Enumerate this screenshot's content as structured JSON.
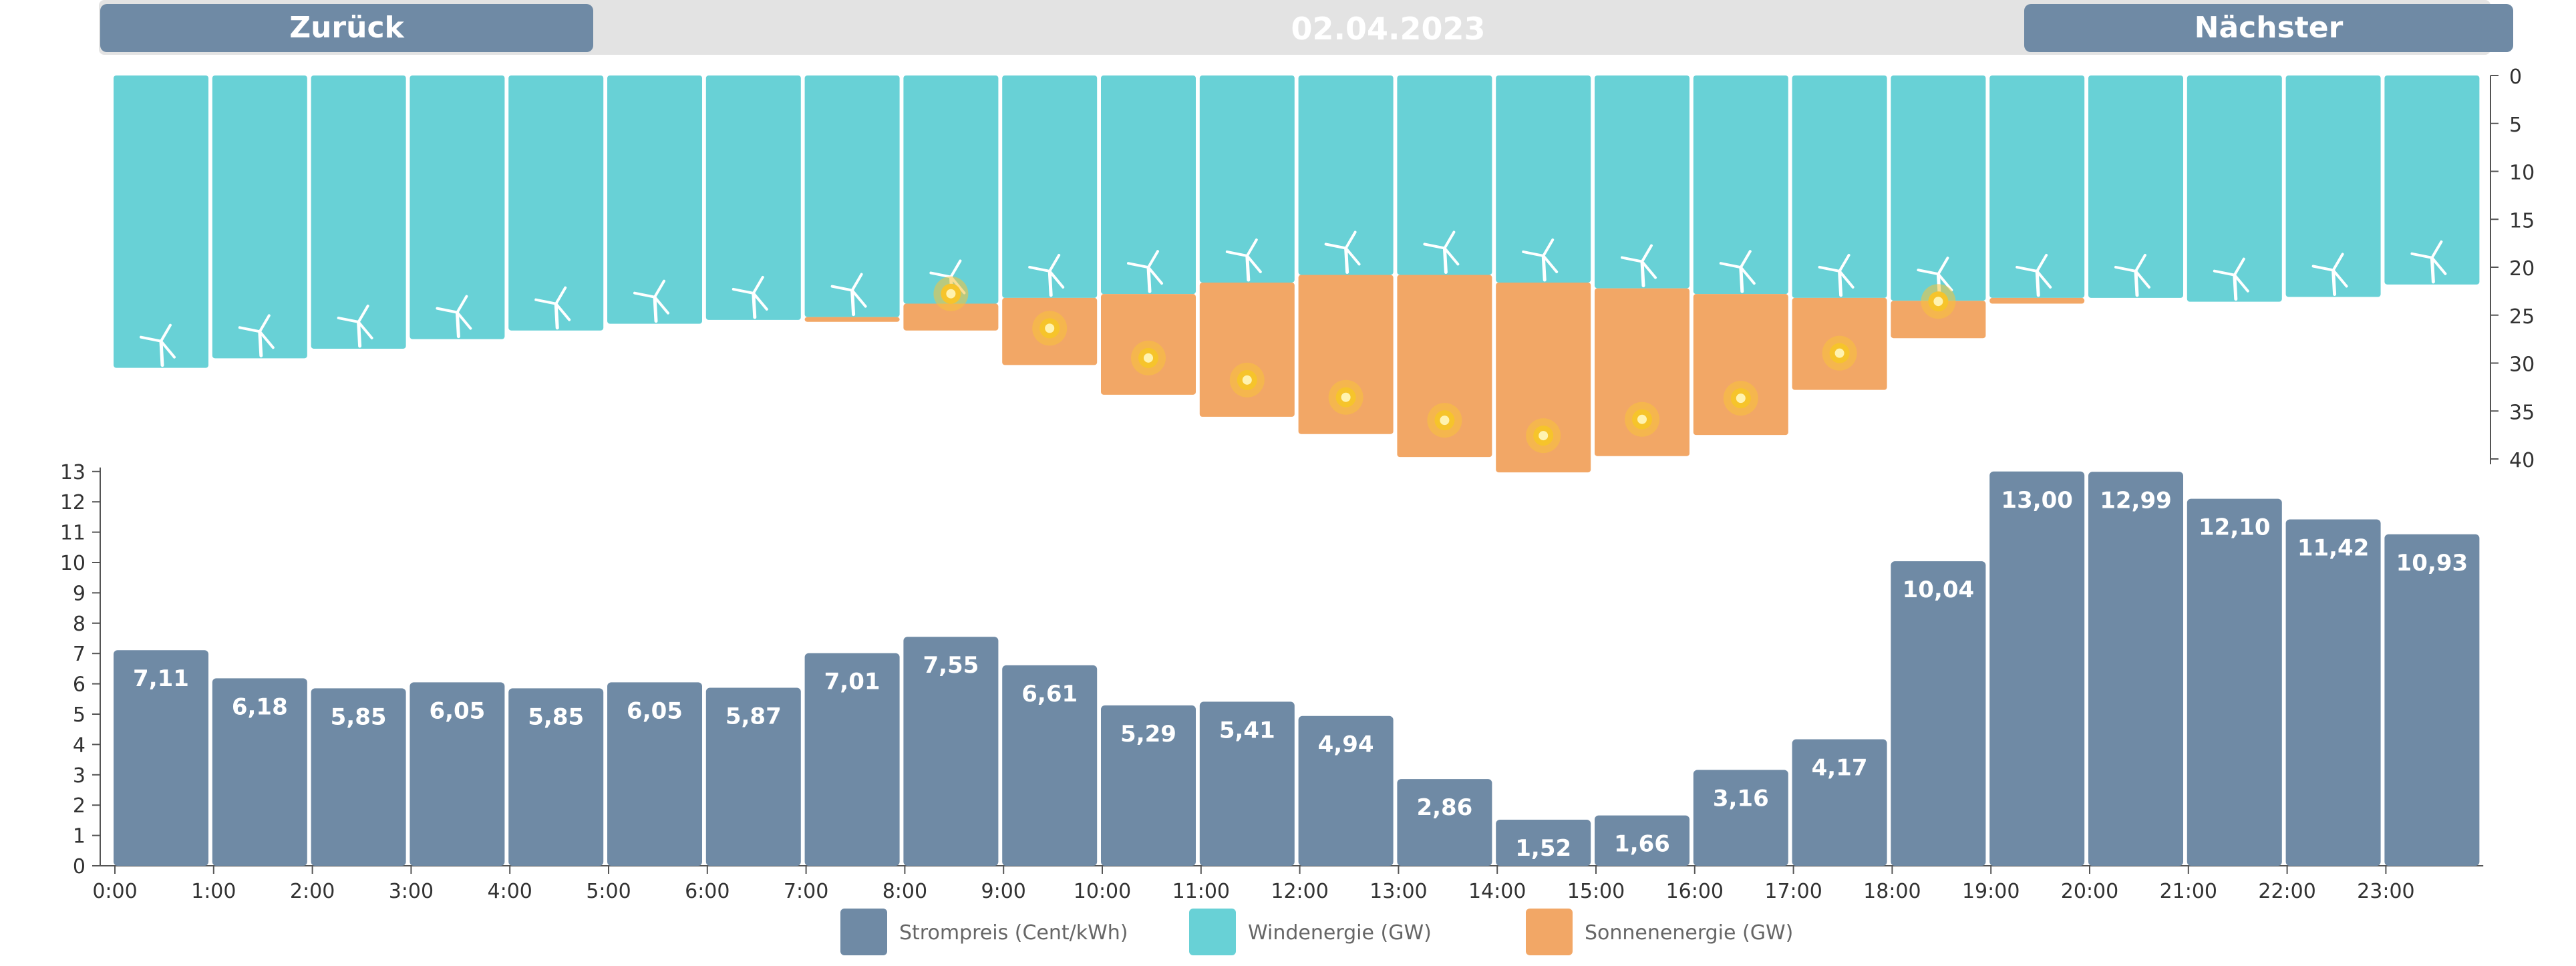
{
  "navigation": {
    "back_label": "Zurück",
    "date": "02.04.2023",
    "next_label": "Nächster"
  },
  "colors": {
    "price": "#6f8aa5",
    "wind": "#68d1d6",
    "solar": "#f2a766",
    "sun_icon": "#f6c42b",
    "nav_bg": "#e3e3e3"
  },
  "chart_data": [
    {
      "type": "bar",
      "chart_kind": "stacked-inverted",
      "categories": [
        "0:00",
        "1:00",
        "2:00",
        "3:00",
        "4:00",
        "5:00",
        "6:00",
        "7:00",
        "8:00",
        "9:00",
        "10:00",
        "11:00",
        "12:00",
        "13:00",
        "14:00",
        "15:00",
        "16:00",
        "17:00",
        "18:00",
        "19:00",
        "20:00",
        "21:00",
        "22:00",
        "23:00"
      ],
      "series": [
        {
          "name": "Windenergie (GW)",
          "icon": "wind-turbine-icon",
          "values": [
            30.5,
            29.5,
            28.5,
            27.5,
            26.6,
            25.9,
            25.5,
            25.2,
            23.8,
            23.2,
            22.8,
            21.6,
            20.8,
            20.8,
            21.6,
            22.2,
            22.8,
            23.2,
            23.5,
            23.2,
            23.2,
            23.6,
            23.1,
            21.8
          ]
        },
        {
          "name": "Sonnenenergie (GW)",
          "icon": "sun-icon",
          "values": [
            0,
            0,
            0,
            0,
            0,
            0,
            0,
            0.5,
            2.8,
            7.0,
            10.5,
            14.0,
            16.6,
            19.0,
            19.8,
            17.5,
            14.7,
            9.6,
            3.9,
            0.6,
            0,
            0,
            0,
            0
          ]
        }
      ],
      "yaxis_ticks": [
        "0",
        "5",
        "10",
        "15",
        "20",
        "25",
        "30",
        "35",
        "40"
      ],
      "ylim": [
        0,
        40
      ],
      "y_inverted": true
    },
    {
      "type": "bar",
      "categories": [
        "0:00",
        "1:00",
        "2:00",
        "3:00",
        "4:00",
        "5:00",
        "6:00",
        "7:00",
        "8:00",
        "9:00",
        "10:00",
        "11:00",
        "12:00",
        "13:00",
        "14:00",
        "15:00",
        "16:00",
        "17:00",
        "18:00",
        "19:00",
        "20:00",
        "21:00",
        "22:00",
        "23:00"
      ],
      "series": [
        {
          "name": "Strompreis (Cent/kWh)",
          "values": [
            7.11,
            6.18,
            5.85,
            6.05,
            5.85,
            6.05,
            5.87,
            7.01,
            7.55,
            6.61,
            5.29,
            5.41,
            4.94,
            2.86,
            1.52,
            1.66,
            3.16,
            4.17,
            10.04,
            13.0,
            12.99,
            12.1,
            11.42,
            10.93
          ]
        }
      ],
      "value_labels": [
        "7,11",
        "6,18",
        "5,85",
        "6,05",
        "5,85",
        "6,05",
        "5,87",
        "7,01",
        "7,55",
        "6,61",
        "5,29",
        "5,41",
        "4,94",
        "2,86",
        "1,52",
        "1,66",
        "3,16",
        "4,17",
        "10,04",
        "13,00",
        "12,99",
        "12,10",
        "11,42",
        "10,93"
      ],
      "yaxis_ticks": [
        "0",
        "1",
        "2",
        "3",
        "4",
        "5",
        "6",
        "7",
        "8",
        "9",
        "10",
        "11",
        "12",
        "13"
      ],
      "ylim": [
        0,
        13
      ],
      "xaxis_ticks": [
        "0:00",
        "1:00",
        "2:00",
        "3:00",
        "4:00",
        "5:00",
        "6:00",
        "7:00",
        "8:00",
        "9:00",
        "10:00",
        "11:00",
        "12:00",
        "13:00",
        "14:00",
        "15:00",
        "16:00",
        "17:00",
        "18:00",
        "19:00",
        "20:00",
        "21:00",
        "22:00",
        "23:00"
      ]
    }
  ],
  "legend": {
    "items": [
      {
        "label": "Strompreis (Cent/kWh)",
        "color": "#6f8aa5"
      },
      {
        "label": "Windenergie (GW)",
        "color": "#68d1d6"
      },
      {
        "label": "Sonnenenergie (GW)",
        "color": "#f2a766"
      }
    ]
  }
}
